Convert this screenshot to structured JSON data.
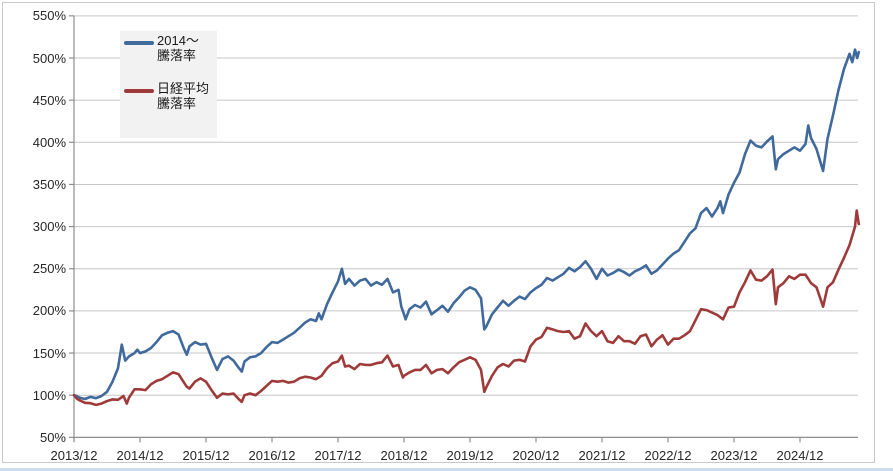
{
  "chart_data": {
    "type": "line",
    "title": "",
    "grid": true,
    "legend_position": "top-left-inside",
    "x_axis": {
      "unit": "year/month",
      "tick_labels": [
        "2013/12",
        "2014/12",
        "2015/12",
        "2016/12",
        "2017/12",
        "2018/12",
        "2019/12",
        "2020/12",
        "2021/12",
        "2022/12",
        "2023/12",
        "2024/12"
      ],
      "range_months_from_2013_12": [
        0,
        142.7
      ]
    },
    "y_axis": {
      "unit": "%",
      "min": 50,
      "max": 550,
      "step": 50,
      "tick_labels": [
        "550%",
        "500%",
        "450%",
        "400%",
        "350%",
        "300%",
        "250%",
        "200%",
        "150%",
        "100%",
        "50%"
      ]
    },
    "legend": {
      "entries": [
        {
          "label_line1": "2014〜",
          "label_line2": "騰落率",
          "color": "#40699c"
        },
        {
          "label_line1": "日経平均",
          "label_line2": "騰落率",
          "color": "#9e3b3a"
        }
      ]
    },
    "series": [
      {
        "name": "2014〜騰落率",
        "color": "#40699c",
        "points_month_value": [
          [
            0,
            100
          ],
          [
            0.5,
            99
          ],
          [
            1,
            97
          ],
          [
            2,
            95.5
          ],
          [
            3,
            98
          ],
          [
            4,
            96.5
          ],
          [
            5,
            99
          ],
          [
            6,
            104
          ],
          [
            7,
            116
          ],
          [
            8,
            132
          ],
          [
            8.7,
            160
          ],
          [
            9.3,
            141
          ],
          [
            10,
            146
          ],
          [
            11,
            150
          ],
          [
            11.5,
            154
          ],
          [
            12,
            150
          ],
          [
            13,
            152
          ],
          [
            14,
            156
          ],
          [
            15,
            163
          ],
          [
            16,
            171
          ],
          [
            17,
            174
          ],
          [
            18,
            176
          ],
          [
            19,
            172
          ],
          [
            20,
            155
          ],
          [
            20.5,
            148
          ],
          [
            21,
            158
          ],
          [
            22,
            163
          ],
          [
            23,
            160
          ],
          [
            24,
            161
          ],
          [
            25,
            145
          ],
          [
            26,
            130
          ],
          [
            27,
            143
          ],
          [
            28,
            146
          ],
          [
            29,
            141
          ],
          [
            30,
            132
          ],
          [
            30.5,
            128
          ],
          [
            31,
            140
          ],
          [
            32,
            145
          ],
          [
            33,
            146
          ],
          [
            34,
            150
          ],
          [
            35,
            157
          ],
          [
            36,
            163
          ],
          [
            37,
            162
          ],
          [
            38,
            166
          ],
          [
            39,
            170
          ],
          [
            40,
            174
          ],
          [
            41,
            180
          ],
          [
            42,
            186
          ],
          [
            43,
            190
          ],
          [
            44,
            188
          ],
          [
            44.5,
            197
          ],
          [
            45,
            190
          ],
          [
            46,
            208
          ],
          [
            47,
            222
          ],
          [
            48,
            235
          ],
          [
            48.7,
            250
          ],
          [
            49.3,
            232
          ],
          [
            50,
            238
          ],
          [
            51,
            230
          ],
          [
            52,
            236
          ],
          [
            53,
            238
          ],
          [
            54,
            230
          ],
          [
            55,
            234
          ],
          [
            56,
            231
          ],
          [
            57,
            238
          ],
          [
            58,
            222
          ],
          [
            59,
            225
          ],
          [
            59.5,
            205
          ],
          [
            60,
            196
          ],
          [
            60.3,
            190
          ],
          [
            61,
            202
          ],
          [
            62,
            207
          ],
          [
            63,
            204
          ],
          [
            64,
            211
          ],
          [
            65,
            196
          ],
          [
            66,
            201
          ],
          [
            67,
            206
          ],
          [
            68,
            199
          ],
          [
            69,
            209
          ],
          [
            70,
            216
          ],
          [
            71,
            224
          ],
          [
            72,
            228
          ],
          [
            73,
            225
          ],
          [
            74,
            215
          ],
          [
            74.6,
            178
          ],
          [
            75,
            182
          ],
          [
            76,
            196
          ],
          [
            77,
            204
          ],
          [
            78,
            212
          ],
          [
            79,
            206
          ],
          [
            80,
            212
          ],
          [
            81,
            217
          ],
          [
            82,
            214
          ],
          [
            83,
            222
          ],
          [
            84,
            227
          ],
          [
            85,
            231
          ],
          [
            86,
            239
          ],
          [
            87,
            236
          ],
          [
            88,
            240
          ],
          [
            89,
            244
          ],
          [
            90,
            251
          ],
          [
            91,
            247
          ],
          [
            92,
            252
          ],
          [
            93,
            259
          ],
          [
            94,
            250
          ],
          [
            95,
            238
          ],
          [
            96,
            250
          ],
          [
            97,
            242
          ],
          [
            98,
            245
          ],
          [
            99,
            249
          ],
          [
            100,
            246
          ],
          [
            101,
            242
          ],
          [
            102,
            247
          ],
          [
            103,
            250
          ],
          [
            104,
            254
          ],
          [
            105,
            244
          ],
          [
            106,
            248
          ],
          [
            107,
            255
          ],
          [
            108,
            262
          ],
          [
            109,
            268
          ],
          [
            110,
            272
          ],
          [
            111,
            282
          ],
          [
            112,
            292
          ],
          [
            113,
            298
          ],
          [
            114,
            316
          ],
          [
            115,
            322
          ],
          [
            116,
            312
          ],
          [
            117,
            322
          ],
          [
            117.5,
            330
          ],
          [
            118,
            316
          ],
          [
            119,
            338
          ],
          [
            120,
            352
          ],
          [
            121,
            364
          ],
          [
            122,
            386
          ],
          [
            123,
            402
          ],
          [
            124,
            396
          ],
          [
            125,
            394
          ],
          [
            126,
            401
          ],
          [
            127,
            407
          ],
          [
            127.6,
            368
          ],
          [
            128,
            380
          ],
          [
            129,
            386
          ],
          [
            130,
            390
          ],
          [
            131,
            394
          ],
          [
            132,
            390
          ],
          [
            133,
            398
          ],
          [
            133.5,
            420
          ],
          [
            134,
            405
          ],
          [
            135,
            392
          ],
          [
            136.2,
            366
          ],
          [
            137,
            404
          ],
          [
            138,
            432
          ],
          [
            139,
            462
          ],
          [
            140,
            487
          ],
          [
            141,
            505
          ],
          [
            141.5,
            495
          ],
          [
            142,
            510
          ],
          [
            142.4,
            500
          ],
          [
            142.7,
            507
          ]
        ]
      },
      {
        "name": "日経平均騰落率",
        "color": "#9e3b3a",
        "points_month_value": [
          [
            0,
            100
          ],
          [
            0.5,
            96
          ],
          [
            1,
            94
          ],
          [
            2,
            91
          ],
          [
            3,
            90.5
          ],
          [
            4,
            88.5
          ],
          [
            5,
            90
          ],
          [
            6,
            93
          ],
          [
            7,
            95
          ],
          [
            8,
            94.5
          ],
          [
            9,
            99
          ],
          [
            9.6,
            90
          ],
          [
            10,
            97
          ],
          [
            11,
            107
          ],
          [
            12,
            107
          ],
          [
            13,
            106
          ],
          [
            14,
            113
          ],
          [
            15,
            117
          ],
          [
            16,
            119
          ],
          [
            17,
            123
          ],
          [
            18,
            127
          ],
          [
            19,
            125
          ],
          [
            20,
            115
          ],
          [
            20.5,
            110
          ],
          [
            21,
            108
          ],
          [
            22,
            116
          ],
          [
            23,
            120
          ],
          [
            24,
            116
          ],
          [
            25,
            106
          ],
          [
            26,
            97
          ],
          [
            27,
            102
          ],
          [
            28,
            101
          ],
          [
            29,
            102
          ],
          [
            30,
            95
          ],
          [
            30.5,
            92
          ],
          [
            31,
            100
          ],
          [
            32,
            102
          ],
          [
            33,
            100
          ],
          [
            34,
            105
          ],
          [
            35,
            111
          ],
          [
            36,
            117
          ],
          [
            37,
            116
          ],
          [
            38,
            117
          ],
          [
            39,
            115
          ],
          [
            40,
            116
          ],
          [
            41,
            120
          ],
          [
            42,
            122
          ],
          [
            43,
            121
          ],
          [
            44,
            119
          ],
          [
            45,
            123
          ],
          [
            46,
            132
          ],
          [
            47,
            138
          ],
          [
            48,
            140
          ],
          [
            48.7,
            147
          ],
          [
            49.3,
            134
          ],
          [
            50,
            135
          ],
          [
            51,
            131
          ],
          [
            52,
            137
          ],
          [
            53,
            136
          ],
          [
            54,
            136
          ],
          [
            55,
            138
          ],
          [
            56,
            139
          ],
          [
            57,
            147
          ],
          [
            58,
            134
          ],
          [
            59,
            136
          ],
          [
            59.8,
            121
          ],
          [
            60,
            123
          ],
          [
            61,
            127
          ],
          [
            62,
            130
          ],
          [
            63,
            130
          ],
          [
            64,
            136
          ],
          [
            65,
            126
          ],
          [
            66,
            130
          ],
          [
            67,
            131
          ],
          [
            68,
            126
          ],
          [
            69,
            133
          ],
          [
            70,
            139
          ],
          [
            71,
            142
          ],
          [
            72,
            145
          ],
          [
            73,
            142
          ],
          [
            74,
            130
          ],
          [
            74.6,
            104
          ],
          [
            75,
            110
          ],
          [
            76,
            123
          ],
          [
            77,
            133
          ],
          [
            78,
            137
          ],
          [
            79,
            134
          ],
          [
            80,
            141
          ],
          [
            81,
            142
          ],
          [
            82,
            140
          ],
          [
            83,
            158
          ],
          [
            84,
            166
          ],
          [
            85,
            169
          ],
          [
            86,
            180
          ],
          [
            87,
            178
          ],
          [
            88,
            176
          ],
          [
            89,
            175
          ],
          [
            90,
            176
          ],
          [
            91,
            167
          ],
          [
            92,
            170
          ],
          [
            93,
            185
          ],
          [
            94,
            176
          ],
          [
            95,
            170
          ],
          [
            96,
            176
          ],
          [
            97,
            164
          ],
          [
            98,
            162
          ],
          [
            99,
            170
          ],
          [
            100,
            164
          ],
          [
            101,
            164
          ],
          [
            102,
            161
          ],
          [
            103,
            170
          ],
          [
            104,
            172
          ],
          [
            105,
            158
          ],
          [
            106,
            166
          ],
          [
            107,
            171
          ],
          [
            108,
            160
          ],
          [
            109,
            167
          ],
          [
            110,
            167
          ],
          [
            111,
            171
          ],
          [
            112,
            176
          ],
          [
            113,
            189
          ],
          [
            114,
            202
          ],
          [
            115,
            201
          ],
          [
            116,
            198
          ],
          [
            117,
            195
          ],
          [
            118,
            190
          ],
          [
            119,
            204
          ],
          [
            120,
            205
          ],
          [
            121,
            222
          ],
          [
            122,
            234
          ],
          [
            123,
            248
          ],
          [
            124,
            237
          ],
          [
            125,
            236
          ],
          [
            126,
            241
          ],
          [
            127,
            249
          ],
          [
            127.6,
            208
          ],
          [
            128,
            228
          ],
          [
            129,
            233
          ],
          [
            130,
            241
          ],
          [
            131,
            238
          ],
          [
            132,
            243
          ],
          [
            133,
            243
          ],
          [
            134,
            233
          ],
          [
            135,
            228
          ],
          [
            136.2,
            205
          ],
          [
            137,
            228
          ],
          [
            138,
            234
          ],
          [
            139,
            249
          ],
          [
            140,
            263
          ],
          [
            141,
            278
          ],
          [
            142,
            300
          ],
          [
            142.3,
            319
          ],
          [
            142.7,
            303
          ]
        ]
      }
    ],
    "colors": {
      "gridline": "#c6c6c6",
      "axis": "#8e8e8e",
      "text": "#262626",
      "legend_background": "#f2f2f2",
      "chart_border": "#c9c9c9"
    }
  }
}
